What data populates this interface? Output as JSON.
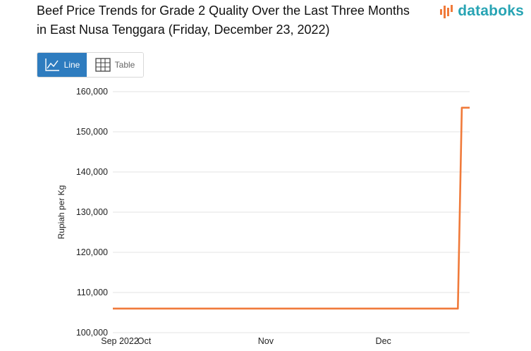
{
  "header": {
    "title": "Beef Price Trends for Grade 2 Quality Over the Last Three Months in East Nusa Tenggara (Friday, December 23, 2022)",
    "brand": "databoks",
    "brand_color": "#28a4b4",
    "brand_icon": "bar-signal-icon"
  },
  "toggle": {
    "line_label": "Line",
    "table_label": "Table",
    "line_icon": "line-chart-icon",
    "table_icon": "table-grid-icon",
    "active": "Line",
    "active_color": "#2e7cbf"
  },
  "chart_data": {
    "type": "line",
    "title": "",
    "xlabel": "",
    "ylabel": "Rupiah per Kg",
    "ylim": [
      100000,
      160000
    ],
    "yticks": [
      100000,
      110000,
      120000,
      130000,
      140000,
      150000,
      160000
    ],
    "ytick_labels": [
      "100,000",
      "110,000",
      "120,000",
      "130,000",
      "140,000",
      "150,000",
      "160,000"
    ],
    "xlim": [
      "2022-09-23",
      "2022-12-23"
    ],
    "xticks": [
      {
        "date": "2022-09-23",
        "label": "Sep 2022"
      },
      {
        "date": "2022-10-01",
        "label": "Oct"
      },
      {
        "date": "2022-11-01",
        "label": "Nov"
      },
      {
        "date": "2022-12-01",
        "label": "Dec"
      }
    ],
    "grid": true,
    "series": [
      {
        "color": "#f07a3a",
        "points": [
          {
            "x": "2022-09-23",
            "y": 106000
          },
          {
            "x": "2022-12-20",
            "y": 106000
          },
          {
            "x": "2022-12-21",
            "y": 156000
          },
          {
            "x": "2022-12-23",
            "y": 156000
          }
        ]
      }
    ]
  }
}
